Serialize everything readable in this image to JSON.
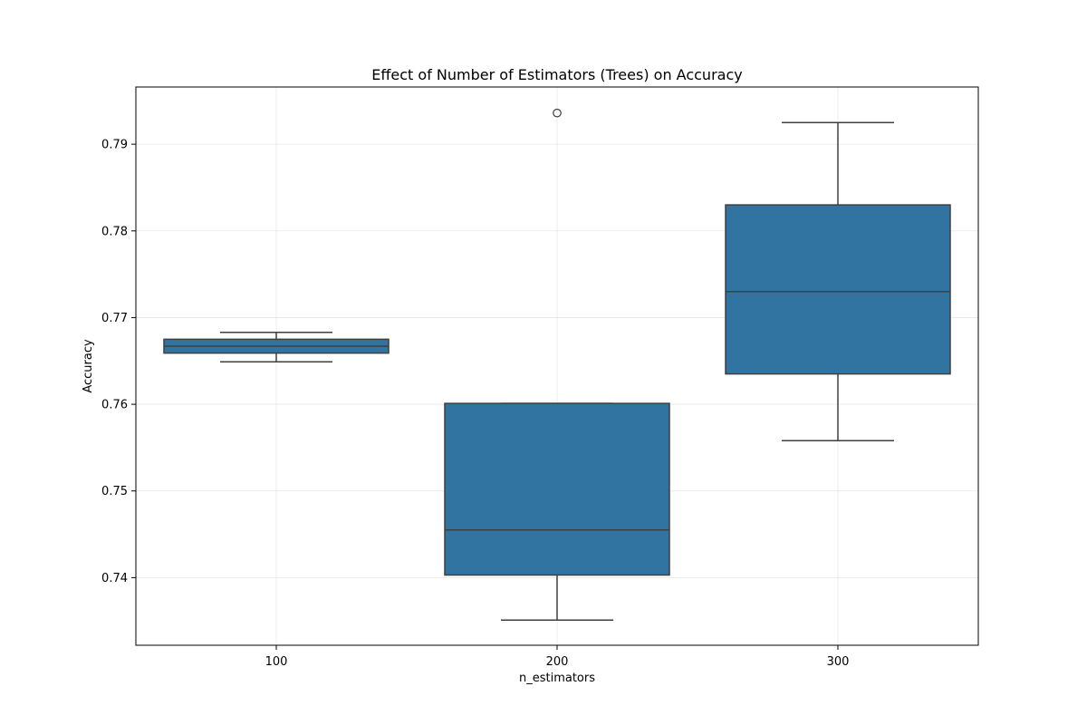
{
  "chart_data": {
    "type": "box",
    "title": "Effect of Number of Estimators (Trees) on Accuracy",
    "xlabel": "n_estimators",
    "ylabel": "Accuracy",
    "categories": [
      "100",
      "200",
      "300"
    ],
    "ylim": [
      0.7322,
      0.7966
    ],
    "yticks": [
      0.74,
      0.75,
      0.76,
      0.77,
      0.78,
      0.79
    ],
    "ytick_labels": [
      "0.74",
      "0.75",
      "0.76",
      "0.77",
      "0.78",
      "0.79"
    ],
    "grid": true,
    "box_color": "#3274a1",
    "line_color": "#3f3f3f",
    "boxes": [
      {
        "category": "100",
        "whisker_low": 0.7649,
        "q1": 0.7659,
        "median": 0.7667,
        "q3": 0.7675,
        "whisker_high": 0.7683,
        "outliers": []
      },
      {
        "category": "200",
        "whisker_low": 0.7351,
        "q1": 0.7403,
        "median": 0.7455,
        "q3": 0.7601,
        "whisker_high": 0.7601,
        "outliers": [
          0.7936
        ]
      },
      {
        "category": "300",
        "whisker_low": 0.7558,
        "q1": 0.7635,
        "median": 0.773,
        "q3": 0.783,
        "whisker_high": 0.7925,
        "outliers": []
      }
    ]
  }
}
